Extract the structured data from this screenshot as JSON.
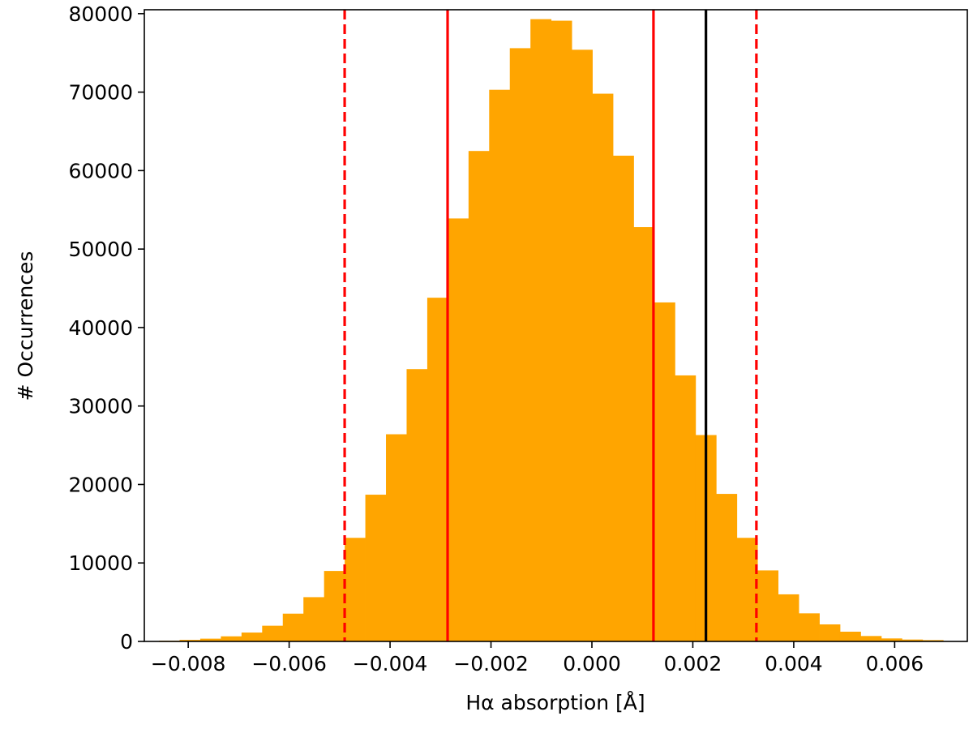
{
  "chart_data": {
    "type": "bar",
    "subtype": "histogram",
    "title": "",
    "xlabel": "Hα absorption [Å]",
    "ylabel": "# Occurrences",
    "xlim": [
      -0.00887,
      0.00744
    ],
    "ylim": [
      0,
      80500
    ],
    "bin_start": -0.00858,
    "bin_width": 0.000409,
    "counts": [
      100,
      200,
      350,
      650,
      1130,
      2000,
      3540,
      5640,
      8980,
      13200,
      18700,
      26400,
      34700,
      43800,
      53900,
      62500,
      70300,
      75600,
      79300,
      79100,
      75400,
      69800,
      61900,
      52800,
      43200,
      33900,
      26300,
      18800,
      13200,
      9050,
      6000,
      3580,
      2170,
      1240,
      690,
      380,
      240,
      170
    ],
    "bar_color": "#FFA500",
    "xticks": [
      -0.008,
      -0.006,
      -0.004,
      -0.002,
      0.0,
      0.002,
      0.004,
      0.006
    ],
    "xtick_labels": [
      "−0.008",
      "−0.006",
      "−0.004",
      "−0.002",
      "0.000",
      "0.002",
      "0.004",
      "0.006"
    ],
    "yticks": [
      0,
      10000,
      20000,
      30000,
      40000,
      50000,
      60000,
      70000,
      80000
    ],
    "ytick_labels": [
      "0",
      "10000",
      "20000",
      "30000",
      "40000",
      "50000",
      "60000",
      "70000",
      "80000"
    ],
    "vlines": [
      {
        "name": "lower-2sigma",
        "x": -0.0049,
        "color": "#FF0000",
        "style": "dashed"
      },
      {
        "name": "lower-1sigma",
        "x": -0.00286,
        "color": "#FF0000",
        "style": "solid"
      },
      {
        "name": "upper-1sigma",
        "x": 0.00122,
        "color": "#FF0000",
        "style": "solid"
      },
      {
        "name": "measured",
        "x": 0.00226,
        "color": "#000000",
        "style": "solid"
      },
      {
        "name": "upper-2sigma",
        "x": 0.00326,
        "color": "#FF0000",
        "style": "dashed"
      }
    ],
    "grid": false,
    "legend": "none"
  }
}
